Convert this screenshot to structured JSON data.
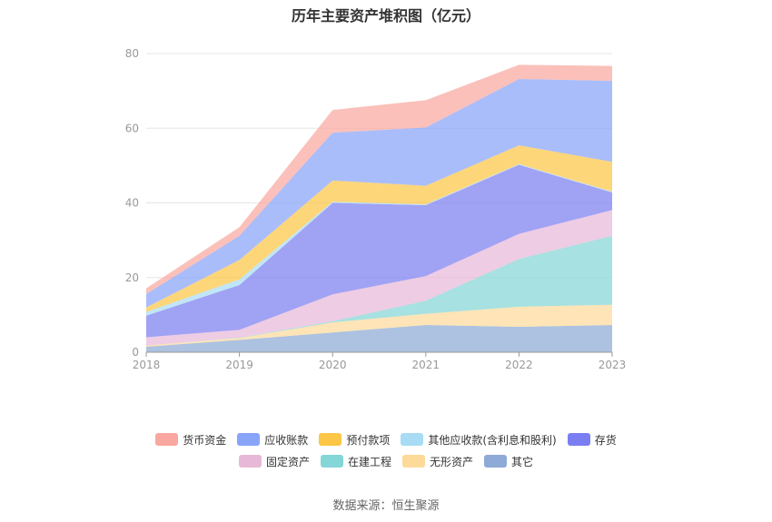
{
  "chart_data": {
    "type": "area",
    "stacked": true,
    "title": "历年主要资产堆积图（亿元）",
    "x": [
      "2018",
      "2019",
      "2020",
      "2021",
      "2022",
      "2023"
    ],
    "ylim": [
      0,
      80
    ],
    "yticks": [
      0,
      20,
      40,
      60,
      80
    ],
    "grid": true,
    "legend_position": "bottom",
    "series": [
      {
        "name": "其它",
        "color": "#8eaad6",
        "values": [
          1.5,
          3.3,
          5.3,
          7.3,
          6.8,
          7.3
        ]
      },
      {
        "name": "无形资产",
        "color": "#fdd99a",
        "values": [
          0.3,
          0.5,
          2.7,
          3.0,
          5.4,
          5.4
        ]
      },
      {
        "name": "在建工程",
        "color": "#85d6d6",
        "values": [
          0.0,
          0.1,
          0.3,
          3.5,
          12.8,
          18.5
        ]
      },
      {
        "name": "固定资产",
        "color": "#e8b8d8",
        "values": [
          2.2,
          2.1,
          7.2,
          6.6,
          6.7,
          6.9
        ]
      },
      {
        "name": "存货",
        "color": "#7b7ef0",
        "values": [
          5.8,
          12.0,
          24.5,
          19.0,
          18.5,
          4.7
        ]
      },
      {
        "name": "其他应收款(含利息和股利)",
        "color": "#a8dcf4",
        "values": [
          1.0,
          1.5,
          0.3,
          0.2,
          0.2,
          0.2
        ]
      },
      {
        "name": "预付款项",
        "color": "#fcc646",
        "values": [
          1.2,
          5.2,
          5.7,
          5.0,
          5.0,
          8.0
        ]
      },
      {
        "name": "应收账款",
        "color": "#88a4f8",
        "values": [
          3.6,
          6.5,
          12.8,
          15.6,
          17.8,
          21.7
        ]
      },
      {
        "name": "货币资金",
        "color": "#f9a7a0",
        "values": [
          1.5,
          2.3,
          6.1,
          7.3,
          3.8,
          4.0
        ]
      }
    ],
    "legend_order": [
      "货币资金",
      "应收账款",
      "预付款项",
      "其他应收款(含利息和股利)",
      "存货",
      "固定资产",
      "在建工程",
      "无形资产",
      "其它"
    ]
  },
  "source": "数据来源：恒生聚源"
}
